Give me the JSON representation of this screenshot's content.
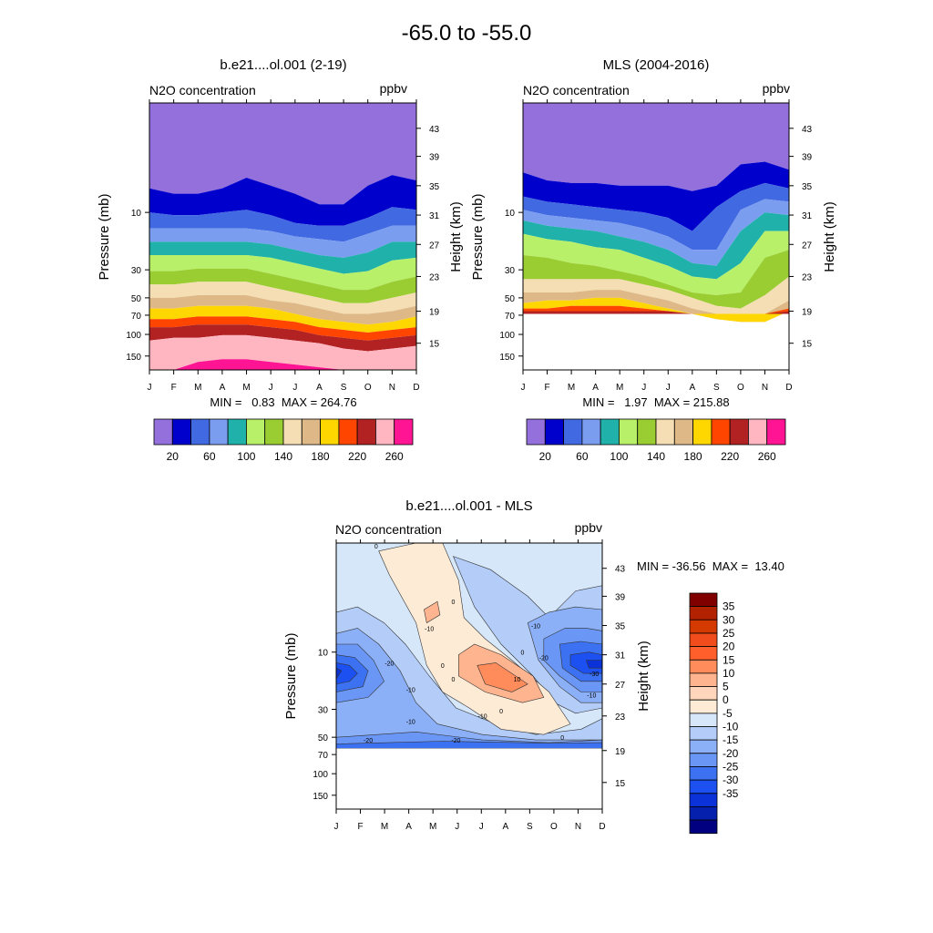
{
  "figure_title": "-65.0 to -55.0",
  "chart_data": [
    {
      "type": "contour",
      "title": "b.e21....ol.001 (2-19)",
      "left_label": "N2O concentration",
      "right_label": "ppbv",
      "ylabel": "Pressure (mb)",
      "y2label": "Height (km)",
      "x_ticks": [
        "J",
        "F",
        "M",
        "A",
        "M",
        "J",
        "J",
        "A",
        "S",
        "O",
        "N",
        "D"
      ],
      "pressure_ticks": [
        "10",
        "30",
        "50",
        "70",
        "100",
        "150"
      ],
      "height_ticks": [
        "43",
        "39",
        "35",
        "31",
        "27",
        "23",
        "19",
        "15"
      ],
      "stats": "MIN =   0.83  MAX = 264.76",
      "levels": [
        20,
        40,
        60,
        80,
        100,
        120,
        140,
        160,
        180,
        200,
        220,
        240,
        260
      ],
      "colorbar_labels": [
        "20",
        "60",
        "100",
        "140",
        "180",
        "220",
        "260"
      ]
    },
    {
      "type": "contour",
      "title": "MLS (2004-2016)",
      "left_label": "N2O concentration",
      "right_label": "ppbv",
      "ylabel": "Pressure (mb)",
      "y2label": "Height (km)",
      "x_ticks": [
        "J",
        "F",
        "M",
        "A",
        "M",
        "J",
        "J",
        "A",
        "S",
        "O",
        "N",
        "D"
      ],
      "pressure_ticks": [
        "10",
        "30",
        "50",
        "70",
        "100",
        "150"
      ],
      "height_ticks": [
        "43",
        "39",
        "35",
        "31",
        "27",
        "23",
        "19",
        "15"
      ],
      "stats": "MIN =   1.97  MAX = 215.88",
      "levels": [
        20,
        40,
        60,
        80,
        100,
        120,
        140,
        160,
        180,
        200,
        220,
        240,
        260
      ],
      "colorbar_labels": [
        "20",
        "60",
        "100",
        "140",
        "180",
        "220",
        "260"
      ]
    },
    {
      "type": "contour",
      "title": "b.e21....ol.001 - MLS",
      "left_label": "N2O concentration",
      "right_label": "ppbv",
      "ylabel": "Pressure (mb)",
      "y2label": "Height (km)",
      "x_ticks": [
        "J",
        "F",
        "M",
        "A",
        "M",
        "J",
        "J",
        "A",
        "S",
        "O",
        "N",
        "D"
      ],
      "pressure_ticks": [
        "10",
        "30",
        "50",
        "70",
        "100",
        "150"
      ],
      "height_ticks": [
        "43",
        "39",
        "35",
        "31",
        "27",
        "23",
        "19",
        "15"
      ],
      "stats": "MIN = -36.56  MAX =  13.40",
      "colorbar_labels": [
        "35",
        "30",
        "25",
        "20",
        "15",
        "10",
        "5",
        "0",
        "-5",
        "-10",
        "-15",
        "-20",
        "-25",
        "-30",
        "-35"
      ],
      "contour_labels": [
        "0",
        "0",
        "0",
        "0",
        "0",
        "0",
        "0",
        "-10",
        "-10",
        "-10",
        "-10",
        "-20",
        "-20",
        "-20",
        "-20",
        "-30",
        "10",
        "-10",
        "-10"
      ]
    }
  ],
  "colors": {
    "abs_palette": [
      "#9370db",
      "#0000cd",
      "#4169e1",
      "#7b9df0",
      "#20b2aa",
      "#b9f06a",
      "#9acd32",
      "#f5deb3",
      "#deb887",
      "#ffd700",
      "#ff4500",
      "#b22222",
      "#ffb6c1",
      "#ff1493"
    ],
    "diff_palette_top_to_bottom": [
      "#800000",
      "#b22200",
      "#d43a00",
      "#f04c1c",
      "#ff5f2a",
      "#ff8c5a",
      "#ffb490",
      "#ffd6bb",
      "#fdebd6",
      "#d6e7fa",
      "#b4cdf8",
      "#8cb0f7",
      "#6a96f5",
      "#3c72f2",
      "#1c50f0",
      "#0a32d8",
      "#0420ad",
      "#000080"
    ]
  }
}
